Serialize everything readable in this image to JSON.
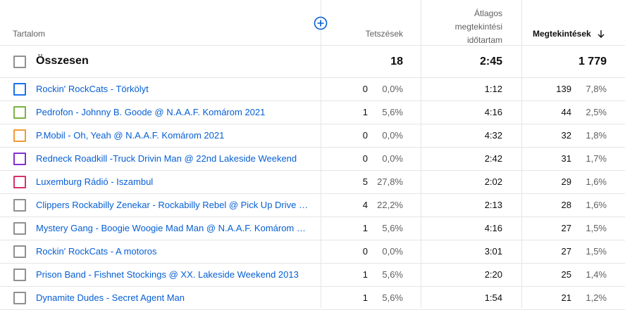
{
  "header": {
    "content": "Tartalom",
    "likes": "Tetszések",
    "avg_duration": [
      "Átlagos",
      "megtekintési",
      "időtartam"
    ],
    "views": "Megtekintések"
  },
  "total": {
    "label": "Összesen",
    "likes": "18",
    "avg_duration": "2:45",
    "views": "1 779"
  },
  "rows": [
    {
      "title": "Rockin' RockCats - Törkölyt",
      "color": "#1a73e8",
      "likes": "0",
      "likes_pct": "0,0%",
      "avg_duration": "1:12",
      "views": "139",
      "views_pct": "7,8%"
    },
    {
      "title": "Pedrofon - Johnny B. Goode @ N.A.A.F. Komárom 2021",
      "color": "#7cb342",
      "likes": "1",
      "likes_pct": "5,6%",
      "avg_duration": "4:16",
      "views": "44",
      "views_pct": "2,5%"
    },
    {
      "title": "P.Mobil - Oh, Yeah @ N.A.A.F. Komárom 2021",
      "color": "#f29b38",
      "likes": "0",
      "likes_pct": "0,0%",
      "avg_duration": "4:32",
      "views": "32",
      "views_pct": "1,8%"
    },
    {
      "title": "Redneck Roadkill -Truck Drivin Man @ 22nd Lakeside Weekend",
      "color": "#8430ce",
      "likes": "0",
      "likes_pct": "0,0%",
      "avg_duration": "2:42",
      "views": "31",
      "views_pct": "1,7%"
    },
    {
      "title": "Luxemburg Rádió - Iszambul",
      "color": "#d6336c",
      "likes": "5",
      "likes_pct": "27,8%",
      "avg_duration": "2:02",
      "views": "29",
      "views_pct": "1,6%"
    },
    {
      "title": "Clippers Rockabilly Zenekar - Rockabilly Rebel @ Pick Up Drive Ro...",
      "color": "#909090",
      "likes": "4",
      "likes_pct": "22,2%",
      "avg_duration": "2:13",
      "views": "28",
      "views_pct": "1,6%"
    },
    {
      "title": "Mystery Gang - Boogie Woogie Mad Man @ N.A.A.F. Komárom 2021",
      "color": "#909090",
      "likes": "1",
      "likes_pct": "5,6%",
      "avg_duration": "4:16",
      "views": "27",
      "views_pct": "1,5%"
    },
    {
      "title": "Rockin' RockCats - A motoros",
      "color": "#909090",
      "likes": "0",
      "likes_pct": "0,0%",
      "avg_duration": "3:01",
      "views": "27",
      "views_pct": "1,5%"
    },
    {
      "title": "Prison Band - Fishnet Stockings @ XX. Lakeside Weekend 2013",
      "color": "#909090",
      "likes": "1",
      "likes_pct": "5,6%",
      "avg_duration": "2:20",
      "views": "25",
      "views_pct": "1,4%"
    },
    {
      "title": "Dynamite Dudes - Secret Agent Man",
      "color": "#909090",
      "likes": "1",
      "likes_pct": "5,6%",
      "avg_duration": "1:54",
      "views": "21",
      "views_pct": "1,2%"
    }
  ]
}
